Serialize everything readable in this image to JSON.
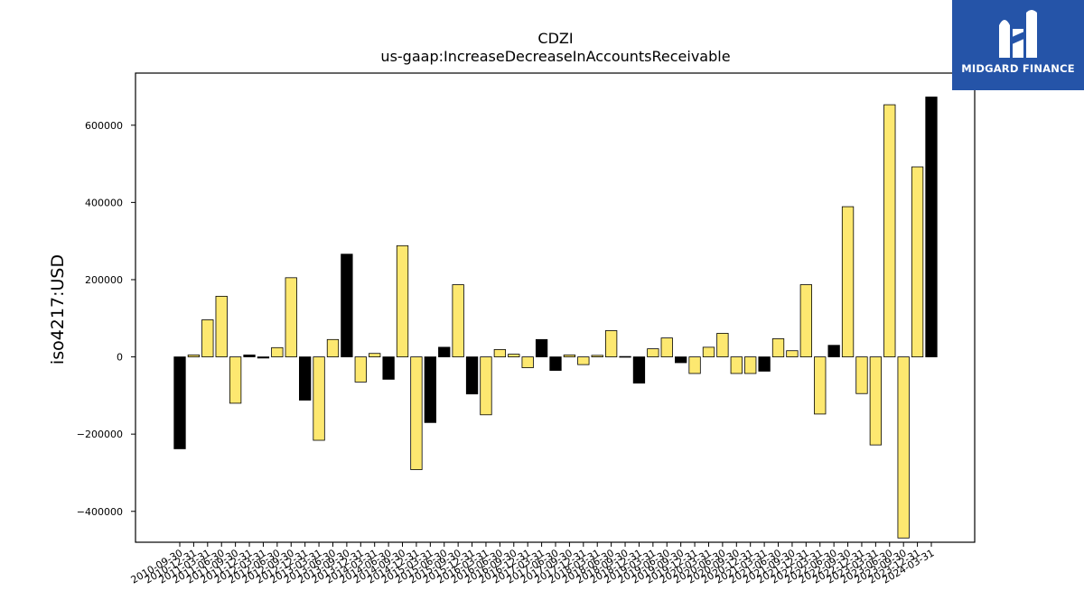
{
  "logo": {
    "text": "MIDGARD FINANCE"
  },
  "colors": {
    "positive": "#fde870",
    "negative": "#000000",
    "logo_bg": "#2554a8"
  },
  "chart_data": {
    "type": "bar",
    "title": "CDZI",
    "subtitle": "us-gaap:IncreaseDecreaseInAccountsReceivable",
    "xlabel": "",
    "ylabel": "iso4217:USD",
    "ylim": [
      -480000,
      735000
    ],
    "yticks": [
      -400000,
      -200000,
      0,
      200000,
      400000,
      600000
    ],
    "grid": false,
    "categories": [
      "2010-09-30",
      "2010-12-31",
      "2011-03-31",
      "2011-06-30",
      "2011-09-30",
      "2011-12-31",
      "2012-03-31",
      "2012-06-30",
      "2012-09-30",
      "2012-12-31",
      "2013-03-31",
      "2013-06-30",
      "2013-09-30",
      "2013-12-31",
      "2014-03-31",
      "2014-06-30",
      "2014-09-30",
      "2014-12-31",
      "2015-03-31",
      "2015-06-30",
      "2015-09-30",
      "2015-12-31",
      "2016-03-31",
      "2016-06-30",
      "2016-09-30",
      "2016-12-31",
      "2017-03-31",
      "2017-06-30",
      "2017-09-30",
      "2017-12-31",
      "2018-03-31",
      "2018-06-30",
      "2018-09-30",
      "2018-12-31",
      "2019-03-31",
      "2019-06-30",
      "2019-09-30",
      "2019-12-31",
      "2020-03-31",
      "2020-06-30",
      "2020-09-30",
      "2020-12-31",
      "2021-03-31",
      "2021-06-30",
      "2021-09-30",
      "2021-12-31",
      "2022-03-31",
      "2022-06-30",
      "2022-09-30",
      "2022-12-31",
      "2023-03-31",
      "2023-06-30",
      "2023-09-30",
      "2023-12-31",
      "2024-03-31"
    ],
    "values": [
      -238000,
      5000,
      96000,
      157000,
      -120000,
      5000,
      -3000,
      24000,
      205000,
      -112000,
      -216000,
      45000,
      266000,
      -65000,
      9000,
      -58000,
      288000,
      -292000,
      -170000,
      25000,
      187000,
      -96000,
      -150000,
      19000,
      7000,
      -28000,
      45000,
      -35000,
      5000,
      -20000,
      4000,
      68000,
      1000,
      -68000,
      21000,
      49000,
      -15000,
      -43000,
      25000,
      61000,
      -43000,
      -43000,
      -37000,
      47000,
      16000,
      187000,
      -148000,
      30000,
      389000,
      -95000,
      -228000,
      653000,
      -469000,
      492000,
      673000
    ]
  }
}
